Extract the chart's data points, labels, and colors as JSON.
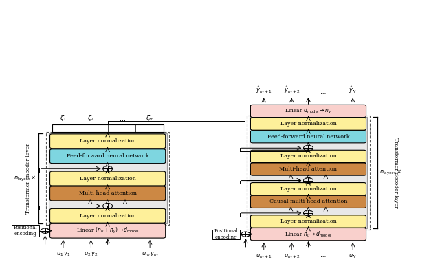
{
  "bg_color": "#ffffff",
  "enc_linear_label": "Linear $(n_u + n_y) \\rightarrow d_{\\mathrm{model}}$",
  "enc_linear_color": "#f9d0cc",
  "enc_ln_label": "Layer normalization",
  "enc_ln_color": "#fef09a",
  "enc_mha_label": "Multi-head attention",
  "enc_mha_color": "#cc8844",
  "enc_ffnn_label": "Feed-forward neural network",
  "enc_ffnn_color": "#7ed6e0",
  "dec_linear_in_label": "Linear $n_u \\rightarrow d_{\\mathrm{model}}$",
  "dec_linear_in_color": "#f9d0cc",
  "dec_causal_mha_label": "Causal multi-head attention",
  "dec_causal_mha_color": "#cc8844",
  "dec_mha_label": "Multi-head attention",
  "dec_mha_color": "#cc8844",
  "dec_ffnn_label": "Feed-forward neural network",
  "dec_ffnn_color": "#7ed6e0",
  "dec_linear_out_label": "Linear $d_{\\mathrm{model}} \\rightarrow n_y$",
  "dec_linear_out_color": "#f9d0cc",
  "dec_ln_label": "Layer normalization",
  "dec_ln_color": "#fef09a",
  "inner_box_color": "#e8e8e8",
  "enc_input_labels": [
    "$u_1\\,y_1$",
    "$u_2\\,y_2$",
    "$\\cdots$",
    "$u_m\\,y_m$"
  ],
  "enc_zeta_labels": [
    "$\\zeta_1$",
    "$\\zeta_2$",
    "$\\cdots$",
    "$\\zeta_m$"
  ],
  "dec_input_labels": [
    "$u_{m+1}$",
    "$u_{m+2}$",
    "$\\cdots$",
    "$u_N$"
  ],
  "dec_output_labels": [
    "$\\hat{y}_{m+1}$",
    "$\\hat{y}_{m+2}$",
    "$\\cdots$",
    "$\\hat{y}_N$"
  ],
  "enc_side_label": "Transformer encoder layer",
  "dec_side_label": "Transformer decoder layer",
  "nlayers_label": "$n_{\\mathrm{layers}} \\times$",
  "pos_enc_label": "Positional\nencoding"
}
